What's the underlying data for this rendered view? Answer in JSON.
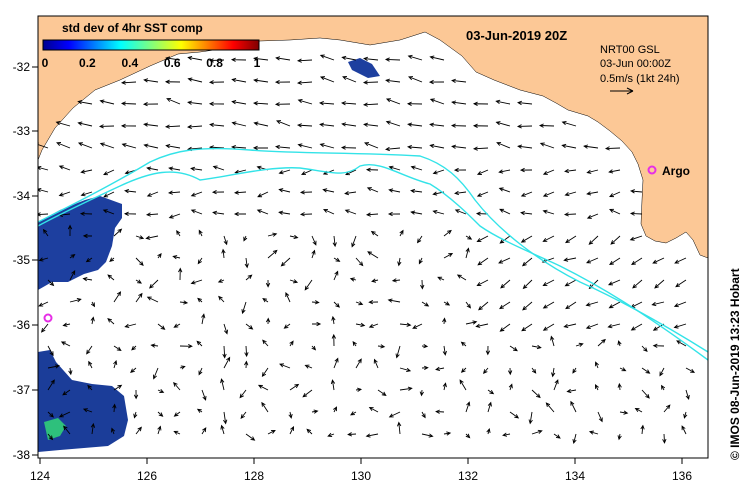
{
  "map": {
    "title": "03-Jun-2019 20Z",
    "credit": "© IMOS 08-Jun-2019 13:23 Hobart",
    "info_lines": [
      "NRT00 GSL",
      "03-Jun 00:00Z",
      "0.5m/s (1kt 24h)"
    ],
    "lon_ticks": [
      "124",
      "126",
      "128",
      "130",
      "132",
      "134",
      "136"
    ],
    "lat_ticks": [
      "-32",
      "-33",
      "-34",
      "-35",
      "-36",
      "-37",
      "-38"
    ],
    "colorbar": {
      "title": "std dev of 4hr SST comp",
      "ticks": [
        "0",
        "0.2",
        "0.4",
        "0.6",
        "0.8",
        "1"
      ]
    },
    "argo_label": "Argo",
    "colors": {
      "land": "#fcc896",
      "sea": "#ffffff",
      "contour": "#33e3e8",
      "argo_marker": "#e62ee6",
      "data_patch": "#1a3c9e"
    }
  }
}
